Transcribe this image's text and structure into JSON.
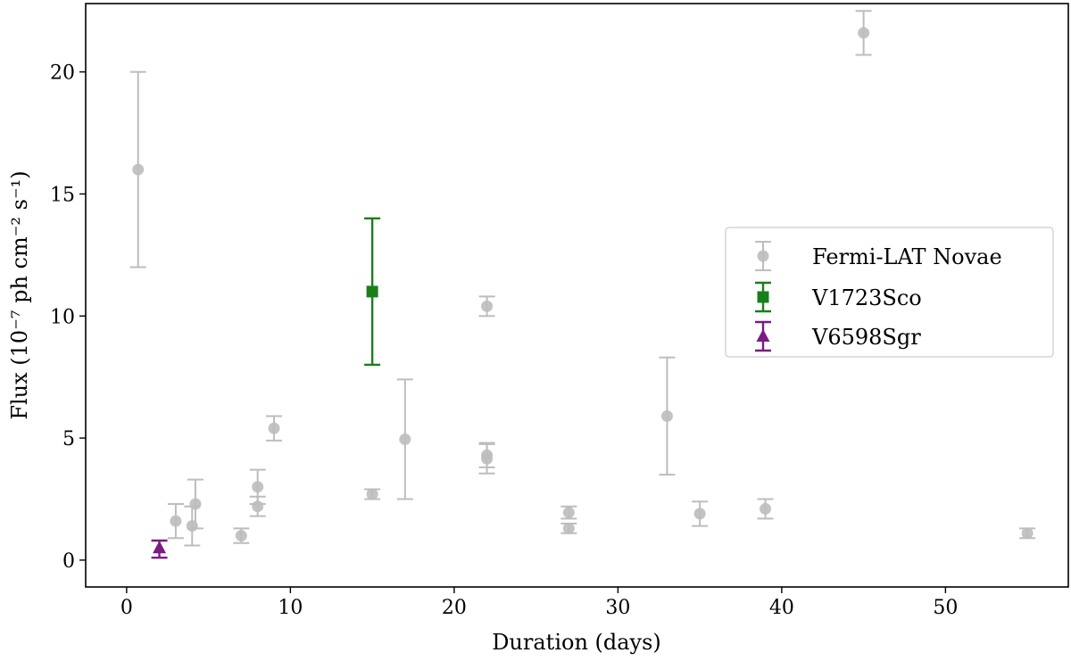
{
  "chart_data": {
    "type": "scatter",
    "title": "",
    "xlabel": "Duration (days)",
    "ylabel": "Flux (10⁻⁷ ph cm⁻² s⁻¹)",
    "xlim": [
      -2.5,
      57.5
    ],
    "ylim": [
      -1.1,
      22.8
    ],
    "xticks": [
      0,
      10,
      20,
      30,
      40,
      50
    ],
    "yticks": [
      0,
      5,
      10,
      15,
      20
    ],
    "grid": false,
    "legend_position": "center-right",
    "series": [
      {
        "name": "Fermi-LAT Novae",
        "marker": "circle",
        "color": "#bdbdbd",
        "points": [
          {
            "x": 0.7,
            "y": 16.0,
            "ylo": 12.0,
            "yhi": 20.0
          },
          {
            "x": 3.0,
            "y": 1.6,
            "ylo": 0.9,
            "yhi": 2.3
          },
          {
            "x": 4.0,
            "y": 1.4,
            "ylo": 0.6,
            "yhi": 2.2
          },
          {
            "x": 4.2,
            "y": 2.3,
            "ylo": 1.3,
            "yhi": 3.3
          },
          {
            "x": 7.0,
            "y": 1.0,
            "ylo": 0.7,
            "yhi": 1.3
          },
          {
            "x": 8.0,
            "y": 2.2,
            "ylo": 1.8,
            "yhi": 2.6
          },
          {
            "x": 8.0,
            "y": 3.0,
            "ylo": 2.3,
            "yhi": 3.7
          },
          {
            "x": 9.0,
            "y": 5.4,
            "ylo": 4.9,
            "yhi": 5.9
          },
          {
            "x": 15.0,
            "y": 2.7,
            "ylo": 2.5,
            "yhi": 2.9
          },
          {
            "x": 17.0,
            "y": 4.95,
            "ylo": 2.5,
            "yhi": 7.4
          },
          {
            "x": 22.0,
            "y": 10.4,
            "ylo": 10.0,
            "yhi": 10.8
          },
          {
            "x": 22.0,
            "y": 4.3,
            "ylo": 3.8,
            "yhi": 4.8
          },
          {
            "x": 22.0,
            "y": 4.15,
            "ylo": 3.55,
            "yhi": 4.75
          },
          {
            "x": 27.0,
            "y": 1.95,
            "ylo": 1.7,
            "yhi": 2.2
          },
          {
            "x": 27.0,
            "y": 1.3,
            "ylo": 1.1,
            "yhi": 1.5
          },
          {
            "x": 33.0,
            "y": 5.9,
            "ylo": 3.5,
            "yhi": 8.3
          },
          {
            "x": 35.0,
            "y": 1.9,
            "ylo": 1.4,
            "yhi": 2.4
          },
          {
            "x": 39.0,
            "y": 2.1,
            "ylo": 1.7,
            "yhi": 2.5
          },
          {
            "x": 45.0,
            "y": 21.6,
            "ylo": 20.7,
            "yhi": 22.5
          },
          {
            "x": 55.0,
            "y": 1.1,
            "ylo": 0.9,
            "yhi": 1.3
          }
        ]
      },
      {
        "name": "V1723Sco",
        "marker": "square",
        "color": "#1a7f1a",
        "points": [
          {
            "x": 15.0,
            "y": 11.0,
            "ylo": 8.0,
            "yhi": 14.0
          }
        ]
      },
      {
        "name": "V6598Sgr",
        "marker": "triangle",
        "color": "#7b1a82",
        "points": [
          {
            "x": 2.0,
            "y": 0.5,
            "ylo": 0.1,
            "yhi": 0.8
          }
        ]
      }
    ]
  }
}
